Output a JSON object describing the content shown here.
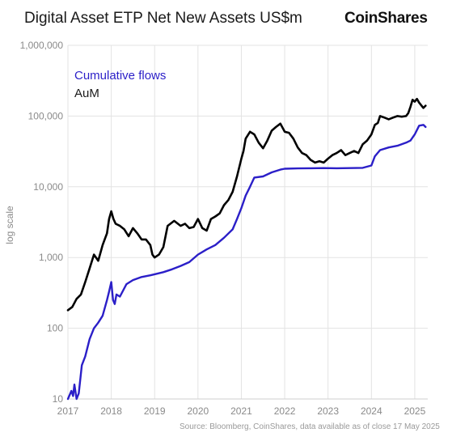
{
  "header": {
    "title": "Digital Asset ETP Net New Assets US$m",
    "brand": "CoinShares"
  },
  "footer": {
    "source": "Source: Bloomberg, CoinShares, data available as of close 17 May 2025"
  },
  "colors": {
    "cumulative": "#2b1fc8",
    "aum": "#000000",
    "grid": "#e3e3e3",
    "axis_text": "#8a8a8a"
  },
  "chart_data": {
    "type": "line",
    "title": "Digital Asset ETP Net New Assets US$m",
    "ylabel": "log scale",
    "xlabel": "",
    "yscale": "log",
    "ylim": [
      10,
      1000000
    ],
    "xlim": [
      2017.0,
      2025.3
    ],
    "grid": true,
    "legend_position": "top-left",
    "x_ticks": [
      2017,
      2018,
      2019,
      2020,
      2021,
      2022,
      2023,
      2024,
      2025
    ],
    "y_ticks": [
      10,
      100,
      1000,
      10000,
      100000,
      1000000
    ],
    "y_tick_labels": [
      "10",
      "100",
      "1,000",
      "10,000",
      "100,000",
      "1,000,000"
    ],
    "series": [
      {
        "name": "Cumulative flows",
        "color": "#2b1fc8",
        "x": [
          2017.0,
          2017.08,
          2017.12,
          2017.15,
          2017.2,
          2017.25,
          2017.32,
          2017.4,
          2017.5,
          2017.6,
          2017.7,
          2017.8,
          2017.9,
          2017.95,
          2018.0,
          2018.04,
          2018.08,
          2018.12,
          2018.2,
          2018.35,
          2018.5,
          2018.7,
          2018.9,
          2019.0,
          2019.2,
          2019.4,
          2019.6,
          2019.8,
          2020.0,
          2020.2,
          2020.4,
          2020.6,
          2020.8,
          2020.9,
          2021.0,
          2021.1,
          2021.2,
          2021.3,
          2021.5,
          2021.7,
          2021.9,
          2022.0,
          2022.3,
          2022.6,
          2022.9,
          2023.2,
          2023.5,
          2023.8,
          2024.0,
          2024.08,
          2024.2,
          2024.4,
          2024.6,
          2024.8,
          2024.9,
          2025.0,
          2025.1,
          2025.2,
          2025.25
        ],
        "y": [
          10,
          13,
          11,
          16,
          10,
          12,
          30,
          40,
          70,
          100,
          120,
          150,
          250,
          330,
          450,
          250,
          220,
          300,
          280,
          420,
          480,
          530,
          560,
          580,
          620,
          680,
          760,
          860,
          1100,
          1300,
          1500,
          1900,
          2500,
          3500,
          5000,
          7500,
          10000,
          13500,
          14000,
          16000,
          17500,
          18000,
          18200,
          18300,
          18400,
          18300,
          18400,
          18500,
          20000,
          27000,
          33000,
          36000,
          38000,
          42000,
          45000,
          55000,
          73000,
          75000,
          70000
        ]
      },
      {
        "name": "AuM",
        "color": "#000000",
        "x": [
          2017.0,
          2017.1,
          2017.2,
          2017.3,
          2017.4,
          2017.5,
          2017.6,
          2017.7,
          2017.8,
          2017.9,
          2017.95,
          2018.0,
          2018.05,
          2018.1,
          2018.2,
          2018.3,
          2018.4,
          2018.5,
          2018.6,
          2018.7,
          2018.8,
          2018.9,
          2018.95,
          2019.0,
          2019.1,
          2019.2,
          2019.3,
          2019.45,
          2019.6,
          2019.7,
          2019.8,
          2019.9,
          2020.0,
          2020.1,
          2020.2,
          2020.3,
          2020.4,
          2020.5,
          2020.6,
          2020.7,
          2020.8,
          2020.9,
          2021.0,
          2021.05,
          2021.1,
          2021.2,
          2021.3,
          2021.4,
          2021.5,
          2021.6,
          2021.7,
          2021.8,
          2021.9,
          2022.0,
          2022.1,
          2022.2,
          2022.3,
          2022.4,
          2022.5,
          2022.6,
          2022.7,
          2022.8,
          2022.9,
          2023.0,
          2023.1,
          2023.2,
          2023.3,
          2023.4,
          2023.5,
          2023.6,
          2023.7,
          2023.8,
          2023.9,
          2024.0,
          2024.08,
          2024.15,
          2024.2,
          2024.3,
          2024.4,
          2024.5,
          2024.6,
          2024.7,
          2024.8,
          2024.85,
          2024.9,
          2024.95,
          2025.0,
          2025.05,
          2025.1,
          2025.2,
          2025.25
        ],
        "y": [
          180,
          200,
          260,
          300,
          450,
          700,
          1100,
          900,
          1500,
          2200,
          3500,
          4500,
          3500,
          3000,
          2800,
          2500,
          2000,
          2600,
          2200,
          1800,
          1800,
          1500,
          1100,
          1000,
          1100,
          1400,
          2800,
          3300,
          2800,
          3000,
          2600,
          2700,
          3500,
          2600,
          2400,
          3500,
          3800,
          4200,
          5500,
          6500,
          8500,
          14000,
          25000,
          32000,
          48000,
          60000,
          55000,
          42000,
          35000,
          45000,
          62000,
          70000,
          78000,
          60000,
          58000,
          48000,
          36000,
          30000,
          28000,
          24000,
          22000,
          23000,
          22000,
          25000,
          28000,
          30000,
          33000,
          28000,
          30000,
          32000,
          30000,
          40000,
          45000,
          55000,
          75000,
          80000,
          100000,
          95000,
          90000,
          95000,
          100000,
          98000,
          100000,
          110000,
          135000,
          170000,
          160000,
          175000,
          155000,
          130000,
          140000
        ]
      }
    ]
  }
}
